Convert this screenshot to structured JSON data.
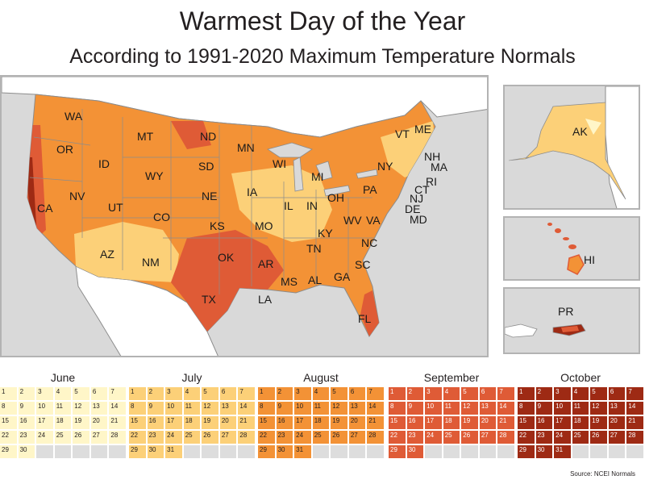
{
  "title": "Warmest Day of the Year",
  "subtitle": "According to 1991-2020 Maximum Temperature Normals",
  "source": "Source: NCEI Normals",
  "colors": {
    "june": "#fff6c8",
    "july": "#fcd078",
    "august": "#f39236",
    "september": "#df5b36",
    "october": "#9e2a14",
    "empty": "#dddddd",
    "ocean": "#d9d9d9",
    "border": "#8c8c8c"
  },
  "states": {
    "wa": "WA",
    "or": "OR",
    "ca": "CA",
    "id": "ID",
    "nv": "NV",
    "mt": "MT",
    "wy": "WY",
    "ut": "UT",
    "co": "CO",
    "az": "AZ",
    "nm": "NM",
    "nd": "ND",
    "sd": "SD",
    "ne": "NE",
    "ks": "KS",
    "ok": "OK",
    "tx": "TX",
    "mn": "MN",
    "ia": "IA",
    "mo": "MO",
    "ar": "AR",
    "la": "LA",
    "wi": "WI",
    "il": "IL",
    "mi": "MI",
    "in": "IN",
    "oh": "OH",
    "ky": "KY",
    "tn": "TN",
    "ms": "MS",
    "al": "AL",
    "ga": "GA",
    "fl": "FL",
    "sc": "SC",
    "nc": "NC",
    "va": "VA",
    "wv": "WV",
    "pa": "PA",
    "ny": "NY",
    "vt": "VT",
    "me": "ME",
    "nh": "NH",
    "ma": "MA",
    "ri": "RI",
    "ct": "CT",
    "nj": "NJ",
    "de": "DE",
    "md": "MD",
    "ak": "AK",
    "hi": "HI",
    "pr": "PR"
  },
  "calendars": [
    {
      "name": "June",
      "days": 30,
      "color_key": "june"
    },
    {
      "name": "July",
      "days": 31,
      "color_key": "july"
    },
    {
      "name": "August",
      "days": 31,
      "color_key": "august"
    },
    {
      "name": "September",
      "days": 30,
      "color_key": "september"
    },
    {
      "name": "October",
      "days": 31,
      "color_key": "october"
    }
  ]
}
